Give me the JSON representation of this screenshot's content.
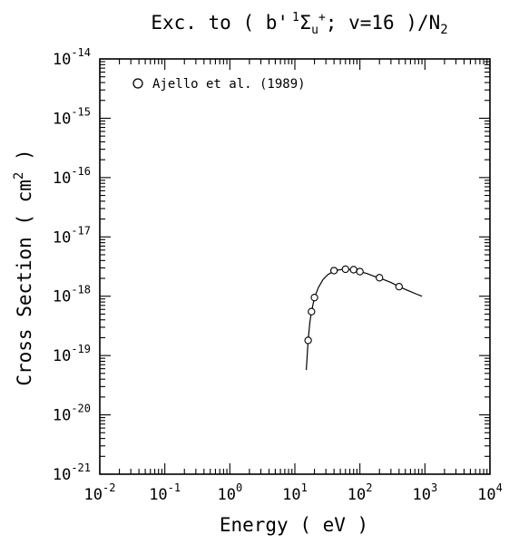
{
  "chart_data": {
    "type": "scatter",
    "title": "Exc. to (b' ¹Σu⁺; v=16)/N₂",
    "title_parts": {
      "prefix": "Exc. to ( b'",
      "sup1": "1",
      "sigma": "Σ",
      "sub_u": "u",
      "sup_plus": "+",
      "suffix": "; v=16 )/N",
      "sub2": "2"
    },
    "xlabel": "Energy ( eV )",
    "ylabel_prefix": "Cross Section ( cm",
    "ylabel_sup": "2",
    "ylabel_suffix": " )",
    "xscale": "log",
    "yscale": "log",
    "xlim": [
      0.01,
      10000
    ],
    "ylim": [
      1e-21,
      1e-14
    ],
    "x_ticks": [
      {
        "base": "10",
        "exp": "-2"
      },
      {
        "base": "10",
        "exp": "-1"
      },
      {
        "base": "10",
        "exp": "0"
      },
      {
        "base": "10",
        "exp": "1"
      },
      {
        "base": "10",
        "exp": "2"
      },
      {
        "base": "10",
        "exp": "3"
      },
      {
        "base": "10",
        "exp": "4"
      }
    ],
    "y_ticks": [
      {
        "base": "10",
        "exp": "-14"
      },
      {
        "base": "10",
        "exp": "-15"
      },
      {
        "base": "10",
        "exp": "-16"
      },
      {
        "base": "10",
        "exp": "-17"
      },
      {
        "base": "10",
        "exp": "-18"
      },
      {
        "base": "10",
        "exp": "-19"
      },
      {
        "base": "10",
        "exp": "-20"
      },
      {
        "base": "10",
        "exp": "-21"
      }
    ],
    "legend": {
      "label": "Ajello et al. (1989)",
      "marker": "open-circle",
      "placement": "top-left"
    },
    "grid": false,
    "series": [
      {
        "name": "Ajello et al. (1989)",
        "style": "open-circle",
        "x": [
          16,
          18,
          20,
          40,
          60,
          80,
          100,
          200,
          400
        ],
        "y": [
          1.8e-19,
          5.5e-19,
          9.5e-19,
          2.7e-18,
          2.85e-18,
          2.8e-18,
          2.6e-18,
          2.05e-18,
          1.45e-18
        ]
      },
      {
        "style": "line",
        "x": [
          15,
          15.5,
          16,
          17,
          18,
          20,
          23,
          27,
          32,
          40,
          50,
          60,
          70,
          80,
          100,
          130,
          170,
          220,
          300,
          400,
          550,
          750,
          900
        ],
        "y": [
          5.7e-20,
          1e-19,
          1.8e-19,
          3.6e-19,
          5.5e-19,
          9.5e-19,
          1.4e-18,
          1.9e-18,
          2.3e-18,
          2.65e-18,
          2.82e-18,
          2.85e-18,
          2.82e-18,
          2.75e-18,
          2.6e-18,
          2.4e-18,
          2.15e-18,
          1.95e-18,
          1.7e-18,
          1.45e-18,
          1.25e-18,
          1.08e-18,
          1e-18
        ]
      }
    ]
  }
}
